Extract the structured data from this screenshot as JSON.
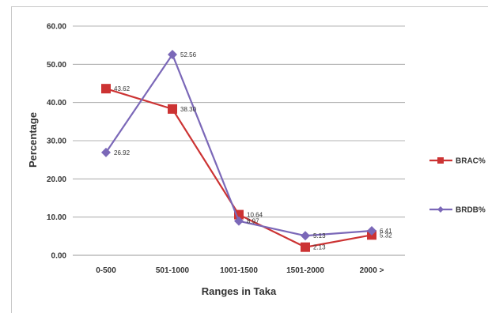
{
  "chart_data": {
    "type": "line",
    "title": "",
    "xlabel": "Ranges in Taka",
    "ylabel": "Percentage",
    "categories": [
      "0-500",
      "501-1000",
      "1001-1500",
      "1501-2000",
      "2000 >"
    ],
    "ylim": [
      0,
      60
    ],
    "yticks": [
      "0.00",
      "10.00",
      "20.00",
      "30.00",
      "40.00",
      "50.00",
      "60.00"
    ],
    "grid": true,
    "legend_position": "right",
    "series": [
      {
        "name": "BRAC%",
        "color": "#cc3333",
        "marker": "square",
        "values": [
          43.62,
          38.3,
          10.64,
          2.13,
          5.32
        ],
        "labels": [
          "43.62",
          "38.30",
          "10.64",
          "2.13",
          "5.32"
        ]
      },
      {
        "name": "BRDB%",
        "color": "#7b68b8",
        "marker": "diamond",
        "values": [
          26.92,
          52.56,
          8.97,
          5.13,
          6.41
        ],
        "labels": [
          "26.92",
          "52.56",
          "8.97",
          "5.13",
          "6.41"
        ]
      }
    ]
  }
}
